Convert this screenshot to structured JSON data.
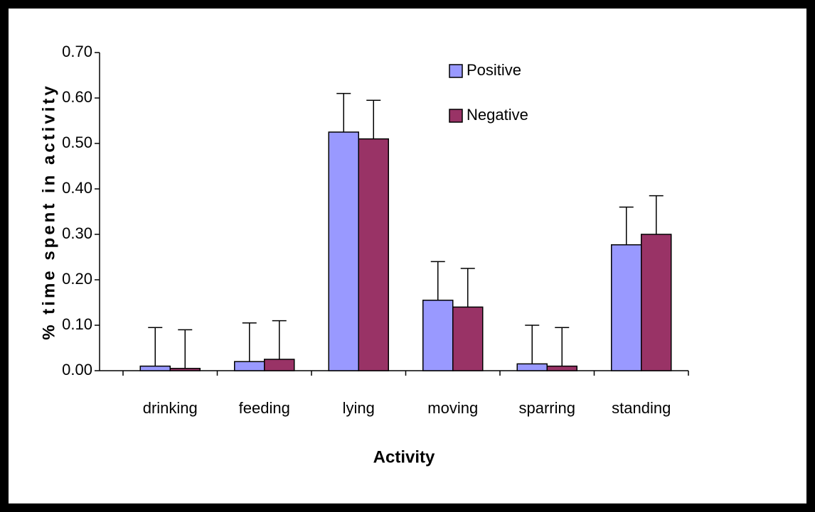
{
  "chart_data": {
    "type": "bar",
    "x_label": "Activity",
    "y_label": "% time spent in activity",
    "categories": [
      "drinking",
      "feeding",
      "lying",
      "moving",
      "sparring",
      "standing"
    ],
    "series": [
      {
        "name": "Positive",
        "color": "#9999ff",
        "values": [
          0.01,
          0.02,
          0.525,
          0.155,
          0.015,
          0.277
        ],
        "errors": [
          0.085,
          0.085,
          0.085,
          0.085,
          0.085,
          0.083
        ]
      },
      {
        "name": "Negative",
        "color": "#993366",
        "values": [
          0.005,
          0.025,
          0.51,
          0.14,
          0.01,
          0.3
        ],
        "errors": [
          0.085,
          0.085,
          0.085,
          0.085,
          0.085,
          0.085
        ]
      }
    ],
    "ylim": [
      0,
      0.7
    ],
    "yticks": [
      {
        "value": 0,
        "label": "0.00"
      },
      {
        "value": 0.1,
        "label": "0.10"
      },
      {
        "value": 0.2,
        "label": "0.20"
      },
      {
        "value": 0.3,
        "label": "0.30"
      },
      {
        "value": 0.4,
        "label": "0.40"
      },
      {
        "value": 0.5,
        "label": "0.50"
      },
      {
        "value": 0.6,
        "label": "0.60"
      },
      {
        "value": 0.7,
        "label": "0.70"
      }
    ],
    "grid": false,
    "legend": "top-right"
  }
}
